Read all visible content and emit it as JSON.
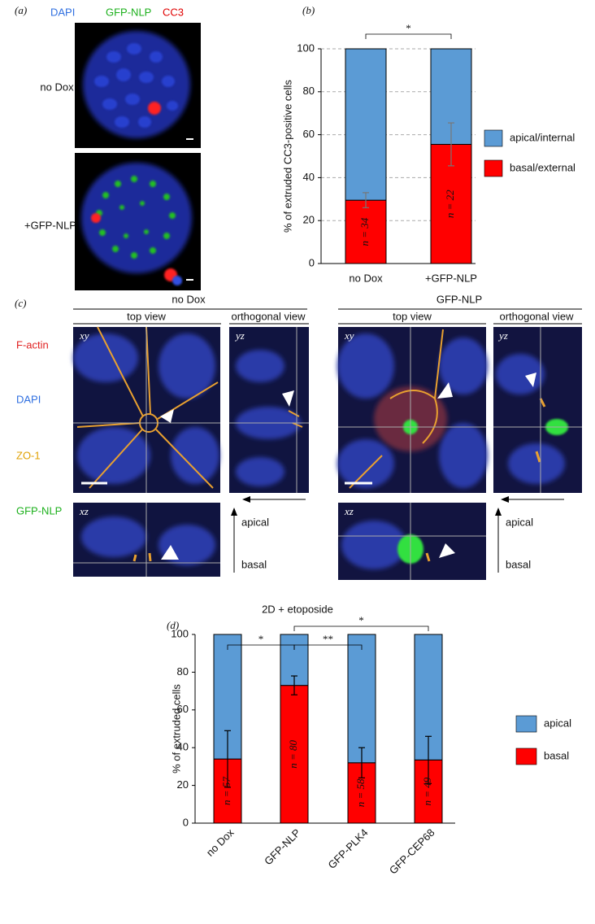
{
  "panel_a": {
    "label": "(a)",
    "channels": [
      "DAPI",
      "GFP-NLP",
      "CC3"
    ],
    "rows": [
      "no Dox",
      "+GFP-NLP"
    ]
  },
  "panel_c": {
    "label": "(c)",
    "channels": [
      "F-actin",
      "DAPI",
      "ZO-1",
      "GFP-NLP"
    ],
    "groups": [
      "no Dox",
      "GFP-NLP"
    ],
    "views": [
      "top view",
      "orthogonal view"
    ],
    "planes": [
      "xy",
      "yz",
      "xz"
    ],
    "arrow_labels": [
      "apical",
      "basal"
    ]
  },
  "chart_data": [
    {
      "type": "stacked_bar",
      "panel_label": "(b)",
      "y_label": "% of extruded CC3-positive cells",
      "categories": [
        "no Dox",
        "+GFP-NLP"
      ],
      "series": [
        {
          "name": "basal/external",
          "color": "#ff0000",
          "values": [
            29.5,
            55.5
          ],
          "errors": [
            3.5,
            10
          ]
        },
        {
          "name": "apical/internal",
          "color": "#5b9bd5",
          "values": [
            70.5,
            44.5
          ]
        }
      ],
      "bar_labels": [
        "n = 34",
        "n = 22"
      ],
      "significance": [
        "*"
      ],
      "ylim": [
        0,
        100
      ],
      "yticks": [
        0,
        20,
        40,
        60,
        80,
        100
      ],
      "grid": true,
      "legend": "right"
    },
    {
      "type": "stacked_bar",
      "panel_label": "(d)",
      "title": "2D + etoposide",
      "y_label": "% of extruded cells",
      "categories": [
        "no Dox",
        "GFP-NLP",
        "GFP-PLK4",
        "GFP-CEP68"
      ],
      "series": [
        {
          "name": "basal",
          "color": "#ff0000",
          "values": [
            34,
            73,
            32,
            33.5
          ],
          "errors": [
            15,
            5,
            8,
            12.5
          ]
        },
        {
          "name": "apical",
          "color": "#5b9bd5",
          "values": [
            66,
            27,
            68,
            66.5
          ]
        }
      ],
      "bar_labels": [
        "n = 57",
        "n = 80",
        "n = 58",
        "n = 49"
      ],
      "significance": [
        "*",
        "**",
        "*"
      ],
      "ylim": [
        0,
        100
      ],
      "yticks": [
        0,
        20,
        40,
        60,
        80,
        100
      ],
      "grid": false,
      "legend": "right"
    }
  ]
}
